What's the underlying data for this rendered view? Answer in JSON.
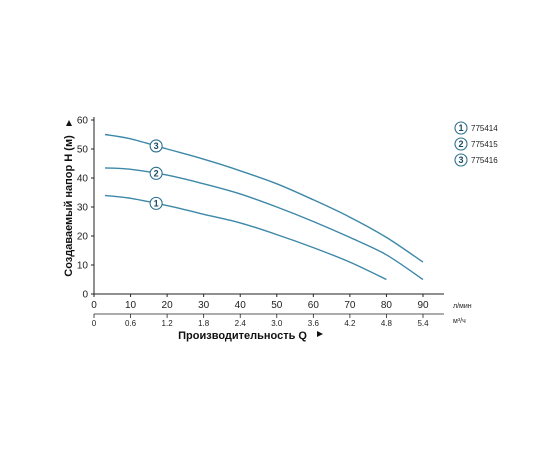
{
  "chart_data": {
    "type": "line",
    "xlabel": "Производительность Q",
    "ylabel": "Создаваемый напор H (м)",
    "x_unit": "л/мин",
    "x2_unit": "м³/ч",
    "xlim": [
      0,
      95
    ],
    "ylim": [
      0,
      60
    ],
    "x_ticks": [
      0,
      10,
      20,
      30,
      40,
      50,
      60,
      70,
      80,
      90
    ],
    "y_ticks": [
      0,
      10,
      20,
      30,
      40,
      50,
      60
    ],
    "x2_ticks": [
      "0",
      "0.6",
      "1.2",
      "1.8",
      "2.4",
      "3.0",
      "3.6",
      "4.2",
      "4.8",
      "5.4"
    ],
    "grid": false,
    "legend_position": "right",
    "line_color": "#3d88a8",
    "marker_border_color": "#2a6f8f",
    "series": [
      {
        "name": "775414",
        "marker": "1",
        "x": [
          3,
          10,
          20,
          30,
          40,
          50,
          60,
          70,
          80
        ],
        "y": [
          34,
          33,
          30.5,
          27.5,
          24.5,
          20.5,
          16,
          11,
          5
        ]
      },
      {
        "name": "775415",
        "marker": "2",
        "x": [
          3,
          10,
          20,
          30,
          40,
          50,
          60,
          70,
          80,
          90
        ],
        "y": [
          43.5,
          43,
          41,
          38,
          34.5,
          30,
          25,
          19.5,
          13.5,
          5
        ]
      },
      {
        "name": "775416",
        "marker": "3",
        "x": [
          3,
          10,
          20,
          30,
          40,
          50,
          60,
          70,
          80,
          90
        ],
        "y": [
          55,
          53.5,
          50,
          46.5,
          42.5,
          38,
          32.5,
          26.5,
          19.5,
          11
        ]
      }
    ]
  }
}
